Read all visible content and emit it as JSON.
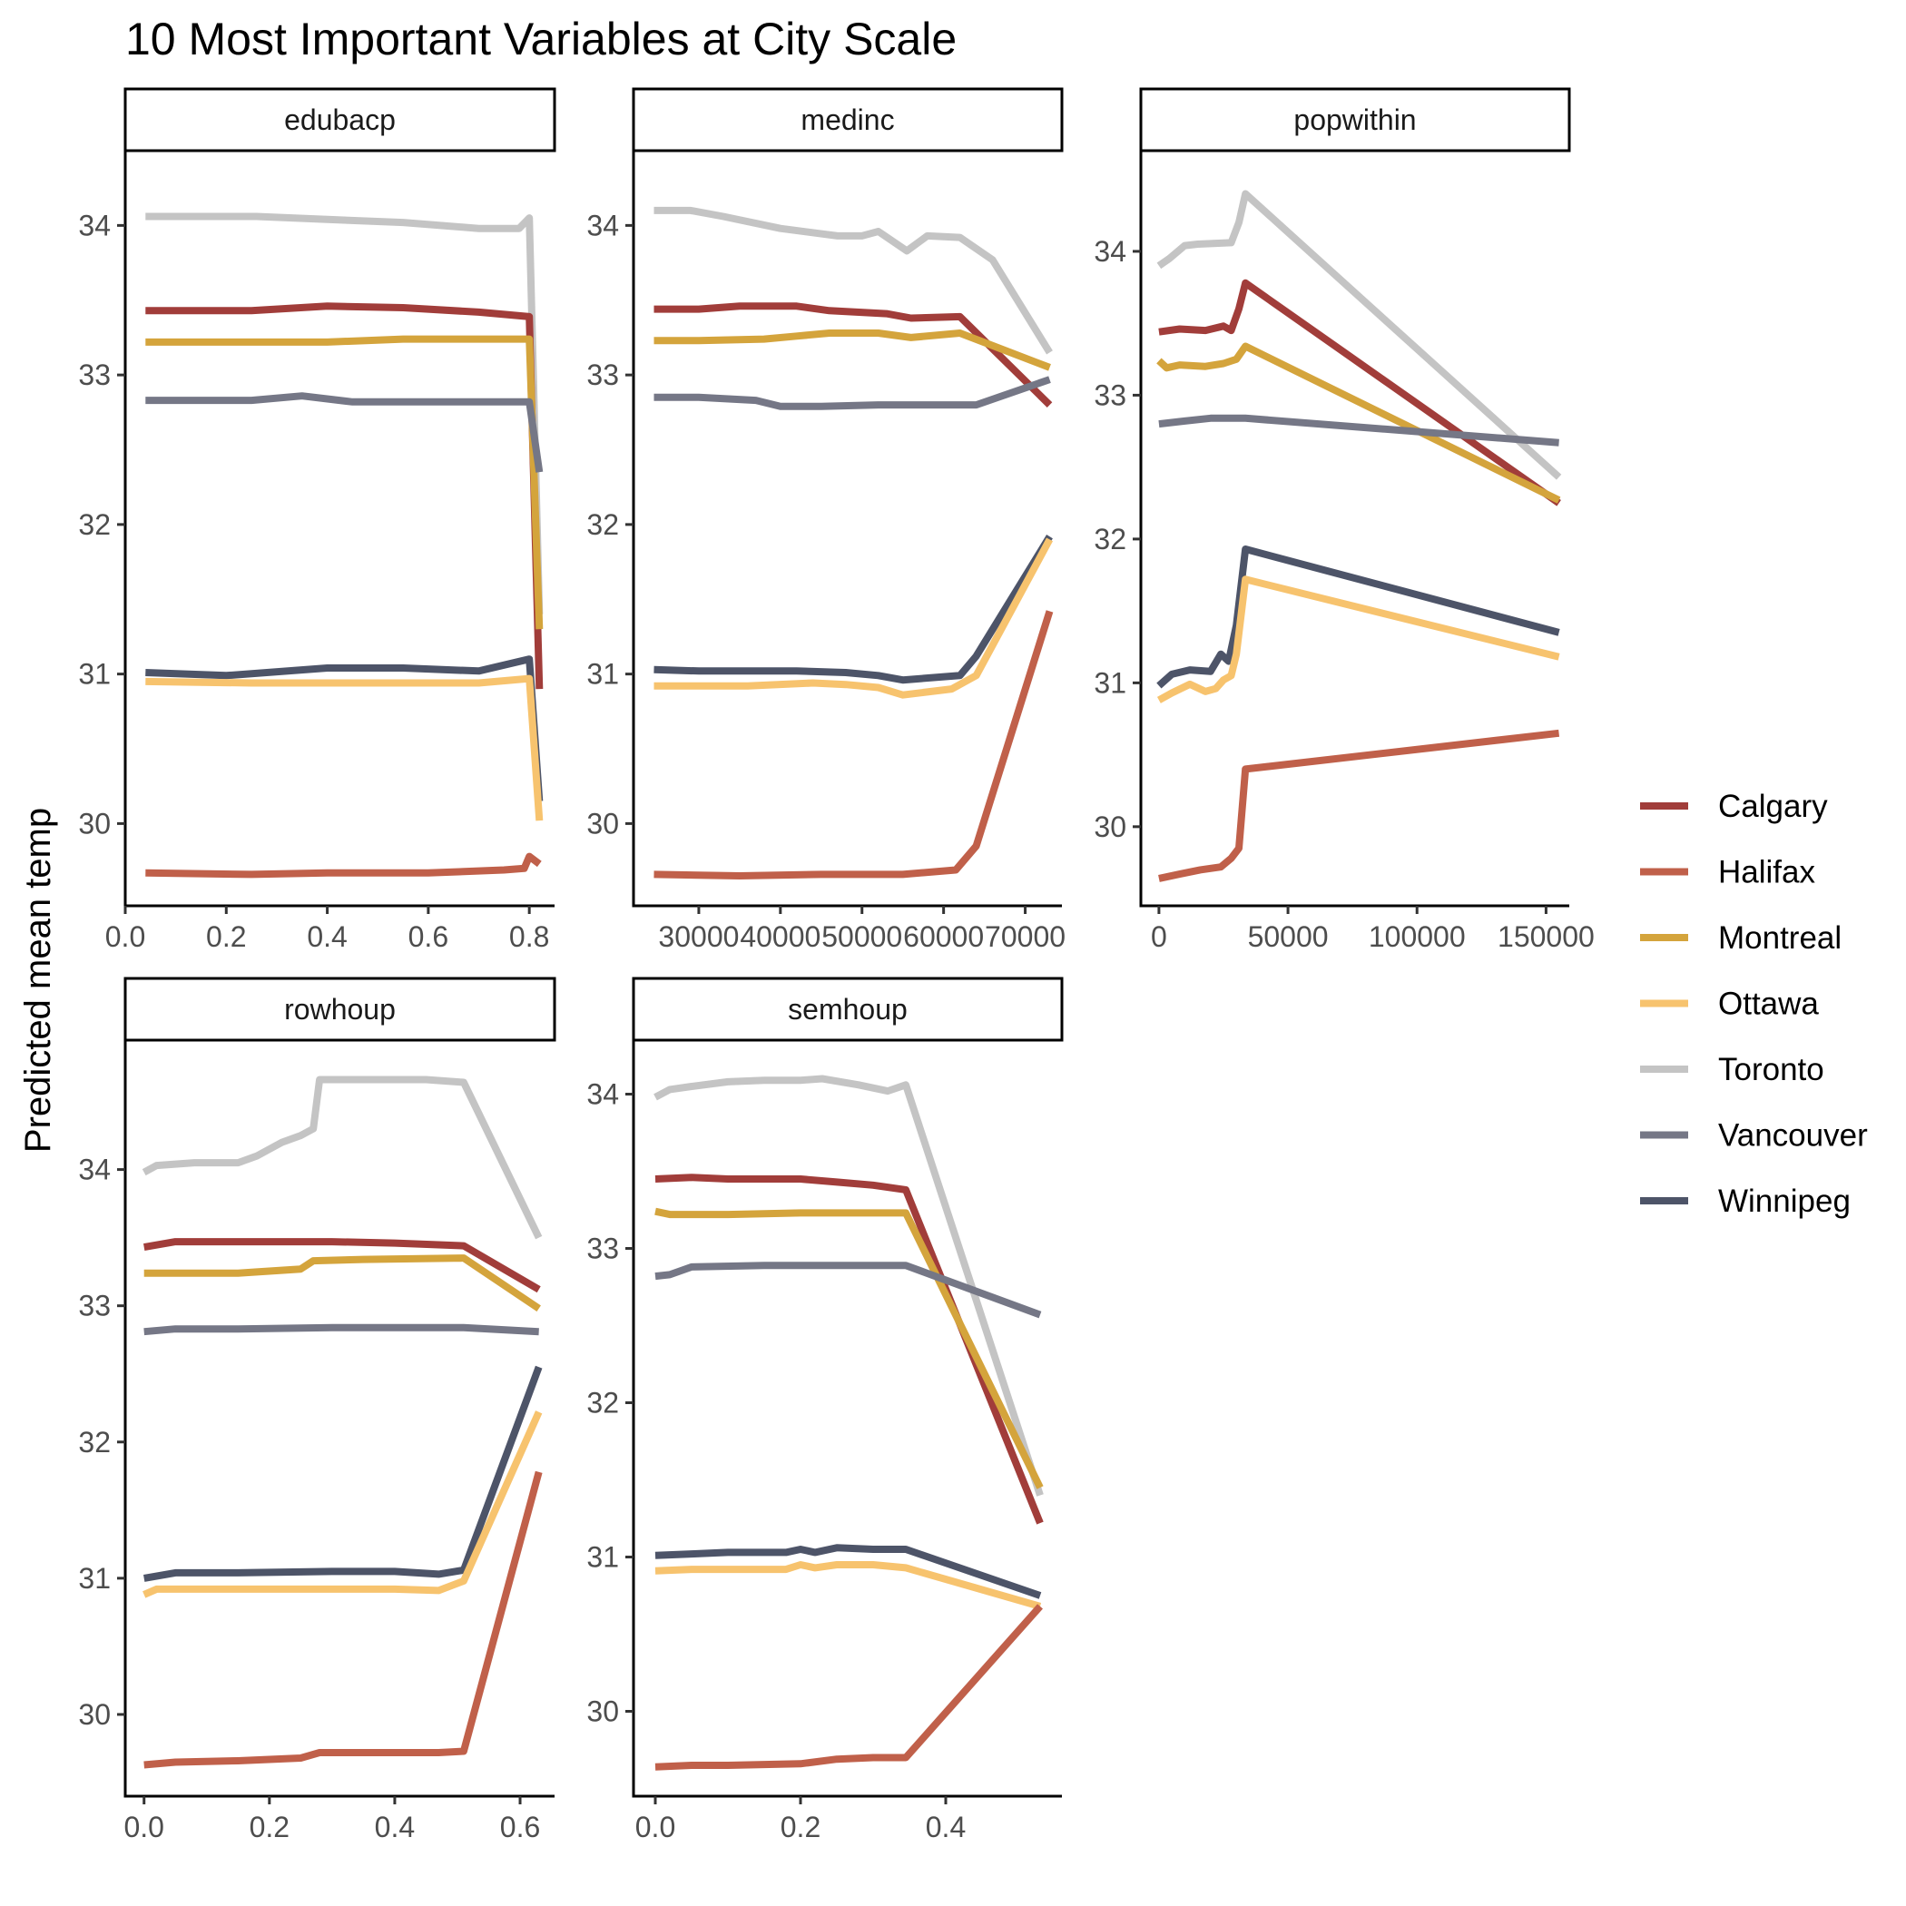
{
  "chart_data": {
    "type": "line",
    "title": "10 Most Important Variables at City Scale",
    "ylabel": "Predicted mean temp",
    "grid": false,
    "legend_position": "right",
    "series_colors": {
      "Calgary": "#A13D3A",
      "Halifax": "#C0604A",
      "Montreal": "#D4A43C",
      "Ottawa": "#F7C36E",
      "Toronto": "#C4C4C4",
      "Vancouver": "#757786",
      "Winnipeg": "#4D5468"
    },
    "legend": [
      "Calgary",
      "Halifax",
      "Montreal",
      "Ottawa",
      "Toronto",
      "Vancouver",
      "Winnipeg"
    ],
    "panels": [
      {
        "name": "edubacp",
        "xlim": [
          0,
          0.85
        ],
        "ylim": [
          29.45,
          34.5
        ],
        "xticks": [
          0,
          0.2,
          0.4,
          0.6,
          0.8
        ],
        "xtick_labels": [
          "0.0",
          "0.2",
          "0.4",
          "0.6",
          "0.8"
        ],
        "yticks": [
          30,
          31,
          32,
          33,
          34
        ],
        "ytick_labels": [
          "30",
          "31",
          "32",
          "33",
          "34"
        ],
        "series": [
          {
            "name": "Toronto",
            "x": [
              0.04,
              0.26,
              0.4,
              0.55,
              0.7,
              0.78,
              0.8,
              0.82
            ],
            "y": [
              34.06,
              34.06,
              34.04,
              34.02,
              33.98,
              33.98,
              34.05,
              31.4
            ]
          },
          {
            "name": "Calgary",
            "x": [
              0.04,
              0.25,
              0.4,
              0.55,
              0.7,
              0.8,
              0.82
            ],
            "y": [
              33.43,
              33.43,
              33.46,
              33.45,
              33.42,
              33.39,
              30.9
            ]
          },
          {
            "name": "Montreal",
            "x": [
              0.04,
              0.25,
              0.4,
              0.55,
              0.7,
              0.8,
              0.82
            ],
            "y": [
              33.22,
              33.22,
              33.22,
              33.24,
              33.24,
              33.24,
              31.3
            ]
          },
          {
            "name": "Vancouver",
            "x": [
              0.04,
              0.25,
              0.35,
              0.45,
              0.65,
              0.8,
              0.82
            ],
            "y": [
              32.83,
              32.83,
              32.86,
              32.82,
              32.82,
              32.82,
              32.35
            ]
          },
          {
            "name": "Winnipeg",
            "x": [
              0.04,
              0.2,
              0.4,
              0.55,
              0.7,
              0.8,
              0.82
            ],
            "y": [
              31.01,
              30.99,
              31.04,
              31.04,
              31.02,
              31.1,
              30.15
            ]
          },
          {
            "name": "Ottawa",
            "x": [
              0.04,
              0.25,
              0.4,
              0.55,
              0.7,
              0.8,
              0.82
            ],
            "y": [
              30.95,
              30.94,
              30.94,
              30.94,
              30.94,
              30.97,
              30.02
            ]
          },
          {
            "name": "Halifax",
            "x": [
              0.04,
              0.25,
              0.4,
              0.6,
              0.75,
              0.79,
              0.8,
              0.82
            ],
            "y": [
              29.67,
              29.66,
              29.67,
              29.67,
              29.69,
              29.7,
              29.78,
              29.73
            ]
          }
        ]
      },
      {
        "name": "medinc",
        "xlim": [
          22000,
          74500
        ],
        "ylim": [
          29.45,
          34.5
        ],
        "xticks": [
          30000,
          40000,
          50000,
          60000,
          70000
        ],
        "xtick_labels": [
          "30000",
          "40000",
          "50000",
          "60000",
          "70000"
        ],
        "yticks": [
          30,
          31,
          32,
          33,
          34
        ],
        "ytick_labels": [
          "30",
          "31",
          "32",
          "33",
          "34"
        ],
        "series": [
          {
            "name": "Toronto",
            "x": [
              24500,
              29000,
              33000,
              40000,
              47000,
              50000,
              52000,
              55500,
              58000,
              62000,
              66000,
              73000
            ],
            "y": [
              34.1,
              34.1,
              34.06,
              33.98,
              33.93,
              33.93,
              33.96,
              33.83,
              33.93,
              33.92,
              33.77,
              33.15
            ]
          },
          {
            "name": "Calgary",
            "x": [
              24500,
              30000,
              35000,
              42000,
              46000,
              53000,
              56000,
              62000,
              73000
            ],
            "y": [
              33.44,
              33.44,
              33.46,
              33.46,
              33.43,
              33.41,
              33.38,
              33.39,
              32.8
            ]
          },
          {
            "name": "Montreal",
            "x": [
              24500,
              30000,
              38000,
              42000,
              46000,
              52000,
              56000,
              62000,
              73000
            ],
            "y": [
              33.23,
              33.23,
              33.24,
              33.26,
              33.28,
              33.28,
              33.25,
              33.28,
              33.05
            ]
          },
          {
            "name": "Vancouver",
            "x": [
              24500,
              30000,
              37000,
              40000,
              45000,
              52000,
              60000,
              64000,
              73000
            ],
            "y": [
              32.85,
              32.85,
              32.83,
              32.79,
              32.79,
              32.8,
              32.8,
              32.8,
              32.97
            ]
          },
          {
            "name": "Winnipeg",
            "x": [
              24500,
              30000,
              36000,
              42000,
              48000,
              52000,
              55000,
              62000,
              64000,
              73000
            ],
            "y": [
              31.03,
              31.02,
              31.02,
              31.02,
              31.01,
              30.99,
              30.96,
              30.99,
              31.12,
              31.92
            ]
          },
          {
            "name": "Ottawa",
            "x": [
              24500,
              30000,
              36000,
              44000,
              48000,
              52000,
              55000,
              61000,
              64000,
              73000
            ],
            "y": [
              30.92,
              30.92,
              30.92,
              30.94,
              30.93,
              30.91,
              30.86,
              30.9,
              30.99,
              31.9
            ]
          },
          {
            "name": "Halifax",
            "x": [
              24500,
              35000,
              45000,
              55000,
              61500,
              64000,
              73000
            ],
            "y": [
              29.66,
              29.65,
              29.66,
              29.66,
              29.69,
              29.85,
              31.42
            ]
          }
        ]
      },
      {
        "name": "popwithin",
        "xlim": [
          -7000,
          159000
        ],
        "ylim": [
          29.45,
          34.7
        ],
        "xticks": [
          0,
          50000,
          100000,
          150000
        ],
        "xtick_labels": [
          "0",
          "50000",
          "100000",
          "150000"
        ],
        "yticks": [
          30,
          31,
          32,
          33,
          34
        ],
        "ytick_labels": [
          "30",
          "31",
          "32",
          "33",
          "34"
        ],
        "series": [
          {
            "name": "Toronto",
            "x": [
              0,
              4000,
              10000,
              15000,
              28000,
              31000,
              33500,
              155000
            ],
            "y": [
              33.9,
              33.95,
              34.04,
              34.05,
              34.06,
              34.2,
              34.4,
              32.43
            ]
          },
          {
            "name": "Calgary",
            "x": [
              0,
              8000,
              18000,
              25000,
              28000,
              31000,
              33500,
              155000
            ],
            "y": [
              33.44,
              33.46,
              33.45,
              33.48,
              33.45,
              33.6,
              33.78,
              32.25
            ]
          },
          {
            "name": "Montreal",
            "x": [
              0,
              3000,
              8000,
              18000,
              25000,
              30000,
              33500,
              155000
            ],
            "y": [
              33.24,
              33.19,
              33.21,
              33.2,
              33.22,
              33.25,
              33.34,
              32.27
            ]
          },
          {
            "name": "Vancouver",
            "x": [
              0,
              10000,
              20000,
              30000,
              33500,
              155000
            ],
            "y": [
              32.8,
              32.82,
              32.84,
              32.84,
              32.84,
              32.67
            ]
          },
          {
            "name": "Winnipeg",
            "x": [
              0,
              5000,
              12000,
              20000,
              24000,
              27000,
              30000,
              33500,
              155000
            ],
            "y": [
              30.98,
              31.06,
              31.09,
              31.08,
              31.2,
              31.15,
              31.4,
              31.93,
              31.35
            ]
          },
          {
            "name": "Ottawa",
            "x": [
              0,
              5000,
              12000,
              18000,
              22000,
              25000,
              28000,
              30000,
              33500,
              155000
            ],
            "y": [
              30.88,
              30.93,
              30.99,
              30.94,
              30.96,
              31.02,
              31.05,
              31.2,
              31.72,
              31.18
            ]
          },
          {
            "name": "Halifax",
            "x": [
              0,
              8000,
              16000,
              24000,
              28000,
              31000,
              33500,
              155000
            ],
            "y": [
              29.64,
              29.67,
              29.7,
              29.72,
              29.78,
              29.85,
              30.4,
              30.65
            ]
          }
        ]
      },
      {
        "name": "rowhoup",
        "xlim": [
          -0.03,
          0.655
        ],
        "ylim": [
          29.4,
          34.95
        ],
        "xticks": [
          0,
          0.2,
          0.4,
          0.6
        ],
        "xtick_labels": [
          "0.0",
          "0.2",
          "0.4",
          "0.6"
        ],
        "yticks": [
          30,
          31,
          32,
          33,
          34
        ],
        "ytick_labels": [
          "30",
          "31",
          "32",
          "33",
          "34"
        ],
        "series": [
          {
            "name": "Toronto",
            "x": [
              0,
              0.02,
              0.08,
              0.15,
              0.18,
              0.2,
              0.22,
              0.25,
              0.27,
              0.28,
              0.35,
              0.45,
              0.51,
              0.63
            ],
            "y": [
              33.98,
              34.03,
              34.05,
              34.05,
              34.1,
              34.15,
              34.2,
              34.25,
              34.3,
              34.66,
              34.66,
              34.66,
              34.64,
              33.5
            ]
          },
          {
            "name": "Calgary",
            "x": [
              0,
              0.05,
              0.15,
              0.3,
              0.4,
              0.51,
              0.63
            ],
            "y": [
              33.43,
              33.47,
              33.47,
              33.47,
              33.46,
              33.44,
              33.12
            ]
          },
          {
            "name": "Montreal",
            "x": [
              0,
              0.05,
              0.15,
              0.25,
              0.27,
              0.35,
              0.51,
              0.63
            ],
            "y": [
              33.24,
              33.24,
              33.24,
              33.27,
              33.33,
              33.34,
              33.35,
              32.98
            ]
          },
          {
            "name": "Vancouver",
            "x": [
              0,
              0.05,
              0.15,
              0.3,
              0.51,
              0.63
            ],
            "y": [
              32.81,
              32.83,
              32.83,
              32.84,
              32.84,
              32.81
            ]
          },
          {
            "name": "Winnipeg",
            "x": [
              0,
              0.05,
              0.15,
              0.3,
              0.4,
              0.47,
              0.51,
              0.63
            ],
            "y": [
              31.0,
              31.04,
              31.04,
              31.05,
              31.05,
              31.03,
              31.06,
              32.55
            ]
          },
          {
            "name": "Ottawa",
            "x": [
              0,
              0.02,
              0.1,
              0.25,
              0.4,
              0.47,
              0.51,
              0.63
            ],
            "y": [
              30.88,
              30.92,
              30.92,
              30.92,
              30.92,
              30.91,
              30.98,
              32.22
            ]
          },
          {
            "name": "Halifax",
            "x": [
              0,
              0.05,
              0.15,
              0.25,
              0.28,
              0.4,
              0.47,
              0.51,
              0.63
            ],
            "y": [
              29.63,
              29.65,
              29.66,
              29.68,
              29.72,
              29.72,
              29.72,
              29.73,
              31.78
            ]
          }
        ]
      },
      {
        "name": "semhoup",
        "xlim": [
          -0.03,
          0.56
        ],
        "ylim": [
          29.45,
          34.35
        ],
        "xticks": [
          0,
          0.2,
          0.4
        ],
        "xtick_labels": [
          "0.0",
          "0.2",
          "0.4"
        ],
        "yticks": [
          30,
          31,
          32,
          33,
          34
        ],
        "ytick_labels": [
          "30",
          "31",
          "32",
          "33",
          "34"
        ],
        "series": [
          {
            "name": "Toronto",
            "x": [
              0,
              0.02,
              0.05,
              0.1,
              0.15,
              0.2,
              0.23,
              0.28,
              0.32,
              0.345,
              0.53
            ],
            "y": [
              33.98,
              34.03,
              34.05,
              34.08,
              34.09,
              34.09,
              34.1,
              34.06,
              34.02,
              34.06,
              31.4
            ]
          },
          {
            "name": "Calgary",
            "x": [
              0,
              0.05,
              0.1,
              0.2,
              0.25,
              0.3,
              0.345,
              0.53
            ],
            "y": [
              33.45,
              33.46,
              33.45,
              33.45,
              33.43,
              33.41,
              33.38,
              31.22
            ]
          },
          {
            "name": "Montreal",
            "x": [
              0,
              0.02,
              0.1,
              0.2,
              0.3,
              0.345,
              0.53
            ],
            "y": [
              33.24,
              33.22,
              33.22,
              33.23,
              33.23,
              33.23,
              31.45
            ]
          },
          {
            "name": "Vancouver",
            "x": [
              0,
              0.02,
              0.05,
              0.15,
              0.3,
              0.345,
              0.53
            ],
            "y": [
              32.82,
              32.83,
              32.88,
              32.89,
              32.89,
              32.89,
              32.57
            ]
          },
          {
            "name": "Winnipeg",
            "x": [
              0,
              0.05,
              0.1,
              0.18,
              0.2,
              0.22,
              0.25,
              0.3,
              0.345,
              0.53
            ],
            "y": [
              31.01,
              31.02,
              31.03,
              31.03,
              31.05,
              31.03,
              31.06,
              31.05,
              31.05,
              30.75
            ]
          },
          {
            "name": "Ottawa",
            "x": [
              0,
              0.05,
              0.1,
              0.18,
              0.2,
              0.22,
              0.25,
              0.3,
              0.345,
              0.53
            ],
            "y": [
              30.91,
              30.92,
              30.92,
              30.92,
              30.95,
              30.93,
              30.95,
              30.95,
              30.93,
              30.68
            ]
          },
          {
            "name": "Halifax",
            "x": [
              0,
              0.05,
              0.1,
              0.2,
              0.25,
              0.3,
              0.345,
              0.53
            ],
            "y": [
              29.64,
              29.65,
              29.65,
              29.66,
              29.69,
              29.7,
              29.7,
              30.68
            ]
          }
        ]
      }
    ]
  }
}
